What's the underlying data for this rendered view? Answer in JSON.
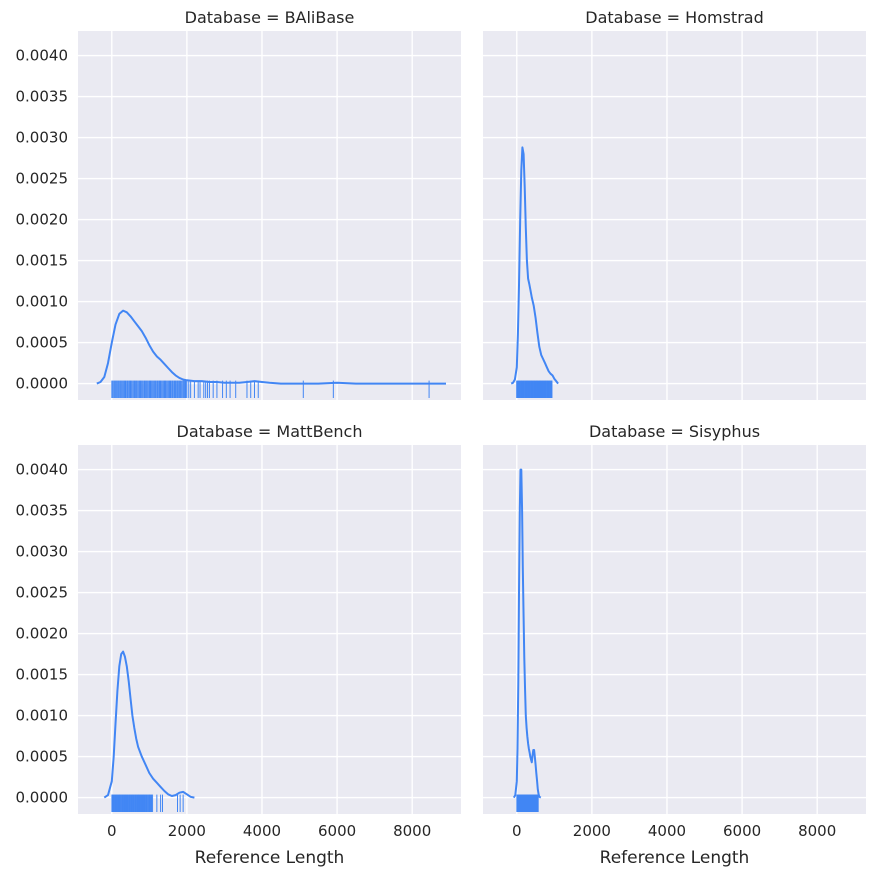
{
  "chart_data": {
    "type": "line",
    "layout": "facet-grid-2x2",
    "series_color": "#4286F4",
    "xlim": [
      -900,
      9300
    ],
    "ylim": [
      -0.0002,
      0.0043
    ],
    "x_ticks": [
      0,
      2000,
      4000,
      6000,
      8000
    ],
    "y_ticks": [
      0.0,
      0.0005,
      0.001,
      0.0015,
      0.002,
      0.0025,
      0.003,
      0.0035,
      0.004
    ],
    "y_tick_labels": [
      "0.0000",
      "0.0005",
      "0.0010",
      "0.0015",
      "0.0020",
      "0.0025",
      "0.0030",
      "0.0035",
      "0.0040"
    ],
    "x_tick_labels": [
      "0",
      "2000",
      "4000",
      "6000",
      "8000"
    ],
    "xlabel": "Reference Length",
    "ylabel": "",
    "grid": true,
    "shared_axes": true,
    "panels": [
      {
        "title": "Database = BAliBase",
        "kde": {
          "x": [
            -400,
            -300,
            -200,
            -100,
            0,
            100,
            200,
            300,
            400,
            500,
            600,
            700,
            800,
            900,
            1000,
            1100,
            1200,
            1300,
            1400,
            1500,
            1600,
            1700,
            1800,
            1900,
            2000,
            2200,
            2400,
            2600,
            2800,
            3000,
            3200,
            3400,
            3600,
            3800,
            4000,
            4200,
            4500,
            5000,
            5500,
            6000,
            6500,
            7000,
            7500,
            8000,
            8500,
            8900
          ],
          "y": [
            0.0,
            2e-05,
            8e-05,
            0.00025,
            0.0005,
            0.00072,
            0.00085,
            0.00089,
            0.00087,
            0.00082,
            0.00076,
            0.0007,
            0.00064,
            0.00056,
            0.00047,
            0.00039,
            0.00033,
            0.00029,
            0.00024,
            0.00019,
            0.00014,
            0.0001,
            7e-05,
            5e-05,
            4e-05,
            3e-05,
            3e-05,
            2e-05,
            2e-05,
            1e-05,
            1e-05,
            1e-05,
            2e-05,
            3e-05,
            2e-05,
            1e-05,
            0.0,
            0.0,
            0.0,
            1e-05,
            0.0,
            0.0,
            0.0,
            0.0,
            0.0,
            0.0
          ]
        },
        "rug_range": [
          0,
          2000
        ],
        "rug_extra": [
          2050,
          2100,
          2200,
          2300,
          2350,
          2450,
          2500,
          2550,
          2600,
          2700,
          2800,
          2950,
          3050,
          3150,
          3300,
          3600,
          3700,
          3800,
          3900,
          5100,
          5900,
          8450
        ]
      },
      {
        "title": "Database = Homstrad",
        "kde": {
          "x": [
            -150,
            -100,
            -50,
            0,
            30,
            60,
            90,
            120,
            150,
            180,
            210,
            240,
            270,
            300,
            330,
            360,
            400,
            450,
            500,
            550,
            600,
            650,
            700,
            750,
            800,
            850,
            900,
            950,
            1000,
            1050,
            1100
          ],
          "y": [
            0.0,
            1e-05,
            5e-05,
            0.0002,
            0.0006,
            0.0012,
            0.002,
            0.0026,
            0.00288,
            0.0028,
            0.0024,
            0.0019,
            0.0015,
            0.00128,
            0.00122,
            0.00115,
            0.00105,
            0.00095,
            0.0008,
            0.00062,
            0.00045,
            0.00035,
            0.0003,
            0.00025,
            0.0002,
            0.00015,
            0.00012,
            0.0001,
            6e-05,
            3e-05,
            0.0
          ]
        },
        "rug_range": [
          0,
          950
        ],
        "rug_extra": []
      },
      {
        "title": "Database = MattBench",
        "kde": {
          "x": [
            -200,
            -100,
            0,
            50,
            100,
            150,
            200,
            250,
            300,
            350,
            400,
            450,
            500,
            550,
            600,
            650,
            700,
            800,
            900,
            1000,
            1100,
            1200,
            1300,
            1400,
            1500,
            1600,
            1700,
            1800,
            1900,
            2000,
            2100,
            2200
          ],
          "y": [
            0.0,
            3e-05,
            0.0002,
            0.0005,
            0.0009,
            0.0013,
            0.0016,
            0.00175,
            0.00178,
            0.00172,
            0.0016,
            0.00142,
            0.0012,
            0.001,
            0.00085,
            0.00072,
            0.00062,
            0.0005,
            0.0004,
            0.0003,
            0.00023,
            0.00018,
            0.00013,
            8e-05,
            4e-05,
            2e-05,
            3e-05,
            6e-05,
            7e-05,
            4e-05,
            1e-05,
            0.0
          ]
        },
        "rug_range": [
          0,
          1100
        ],
        "rug_extra": [
          1200,
          1300,
          1350,
          1750,
          1820,
          1900
        ]
      },
      {
        "title": "Database = Sisyphus",
        "kde": {
          "x": [
            -80,
            -40,
            0,
            20,
            40,
            60,
            80,
            100,
            120,
            140,
            160,
            180,
            200,
            220,
            240,
            260,
            280,
            300,
            320,
            340,
            360,
            380,
            400,
            420,
            440,
            460,
            480,
            500,
            520,
            540,
            560,
            580,
            600,
            640
          ],
          "y": [
            0.0,
            3e-05,
            0.0002,
            0.0006,
            0.0014,
            0.0025,
            0.0035,
            0.004,
            0.004,
            0.0035,
            0.0028,
            0.0022,
            0.0017,
            0.0013,
            0.001,
            0.00085,
            0.00075,
            0.00066,
            0.0006,
            0.00055,
            0.0005,
            0.00046,
            0.00043,
            0.00052,
            0.00058,
            0.00058,
            0.0005,
            0.0004,
            0.0003,
            0.0002,
            0.0001,
            4e-05,
            1e-05,
            0.0
          ]
        },
        "rug_range": [
          0,
          580
        ],
        "rug_extra": []
      }
    ]
  }
}
